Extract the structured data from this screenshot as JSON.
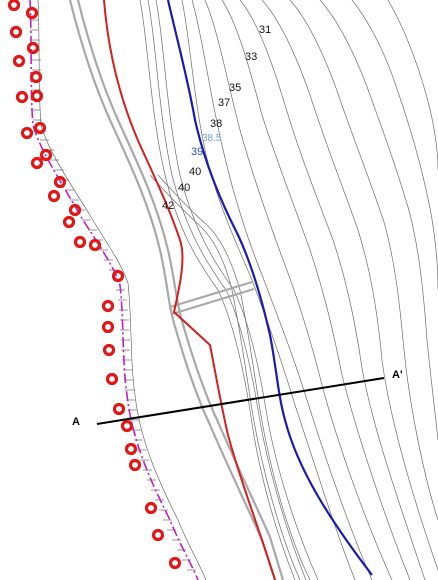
{
  "contour_labels": {
    "c31": "31",
    "c33": "33",
    "c35": "35",
    "c37": "37",
    "c38": "38",
    "c38_5": "38.5",
    "c39": "39",
    "c40a": "40",
    "c40b": "40",
    "c42": "42"
  },
  "section": {
    "start_label": "A",
    "end_label": "A'"
  },
  "colors": {
    "red_line": "#d31f1f",
    "blue_line": "#1a1ab0",
    "light_blue_label": "#6fa0d8",
    "blue_label": "#2e4fc9",
    "marker_red": "#e31616",
    "magenta_boundary": "#c21fc2",
    "contour_gray": "#6c6c6c",
    "road_gray": "#a8a8a8"
  },
  "icons": {
    "point_marker": "red-ring-marker"
  }
}
